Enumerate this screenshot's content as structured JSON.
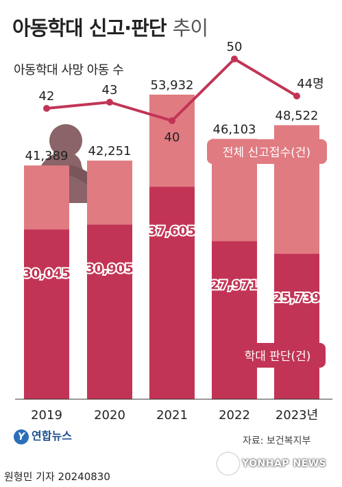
{
  "header": {
    "title_bold": "아동학대 신고·판단",
    "title_light": "추이"
  },
  "line_label": "아동학대 사망 아동 수",
  "chart_data": [
    {
      "type": "line",
      "title": "아동학대 사망 아동 수",
      "x": [
        "2019",
        "2020",
        "2021",
        "2022",
        "2023"
      ],
      "values": [
        42,
        43,
        40,
        50,
        44
      ],
      "value_labels": [
        "42",
        "43",
        "40",
        "50",
        "44명"
      ],
      "color": "#c23455"
    },
    {
      "type": "bar",
      "categories": [
        "2019",
        "2020",
        "2021",
        "2022",
        "2023년"
      ],
      "series": [
        {
          "name": "전체 신고접수(건)",
          "values": [
            41389,
            42251,
            53932,
            46103,
            48522
          ],
          "labels": [
            "41,389",
            "42,251",
            "53,932",
            "46,103",
            "48,522"
          ],
          "color": "#e07b82"
        },
        {
          "name": "학대 판단(건)",
          "values": [
            30045,
            30905,
            37605,
            27971,
            25739
          ],
          "labels": [
            "30,045",
            "30,905",
            "37,605",
            "27,971",
            "25,739"
          ],
          "color": "#c23455"
        }
      ],
      "ylim": [
        0,
        60000
      ]
    }
  ],
  "legend": {
    "total": "전체 신고접수(건)",
    "abuse": "학대 판단(건)"
  },
  "footer": {
    "logo_text": "연합뉴스",
    "source": "자료: 보건복지부",
    "byline": "원형민 기자  20240830",
    "wire": "YONHAP NEWS"
  }
}
